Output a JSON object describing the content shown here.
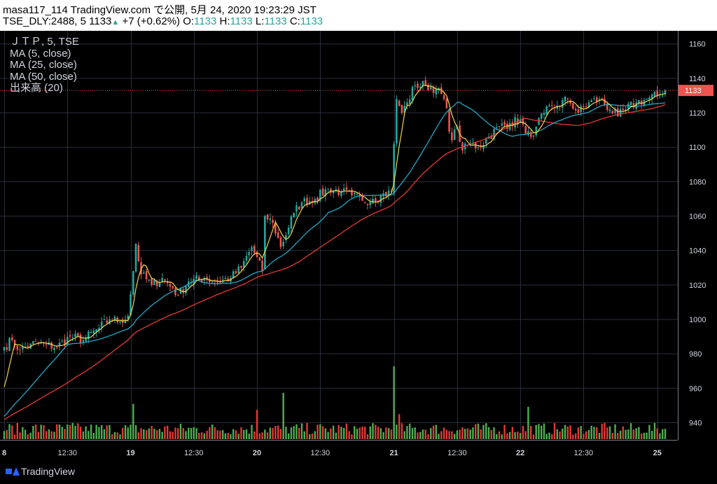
{
  "header": {
    "line1": "masa117_114 TradingView.com で公開, 5月 24, 2020 19:23:29 JST",
    "symbol": "TSE_DLY:2488, 5",
    "last": "1133",
    "change_arrow": "▲",
    "change": "+7 (+0.62%)",
    "o_label": "O:",
    "o": "1133",
    "h_label": "H:",
    "h": "1133",
    "l_label": "L:",
    "l": "1133",
    "c_label": "C:",
    "c": "1133"
  },
  "legend": {
    "symbol": "ＪＴＰ, 5, TSE",
    "ma5": "MA (5, close)",
    "ma25": "MA (25, close)",
    "ma50": "MA (50, close)",
    "volume": "出来高 (20)"
  },
  "footer": {
    "brand": "TradingView"
  },
  "colors": {
    "background": "#000000",
    "grid": "#2a2e39",
    "up": "#26a69a",
    "down": "#ef5350",
    "ma5": "#f5d547",
    "ma25": "#22a7c8",
    "ma50": "#e53935",
    "axis_text": "#d1d4dc",
    "price_line": "#ef5350",
    "volume_up": "#4caf50",
    "volume_down": "#e53935"
  },
  "chart_data": {
    "type": "candlestick",
    "x_ticks": [
      "8",
      "12:30",
      "19",
      "12:30",
      "20",
      "12:30",
      "21",
      "12:30",
      "22",
      "12:30",
      "25"
    ],
    "x_tick_bold": [
      true,
      false,
      true,
      false,
      true,
      false,
      true,
      false,
      true,
      false,
      true
    ],
    "y_ticks": [
      940,
      960,
      980,
      1000,
      1020,
      1040,
      1060,
      1080,
      1100,
      1120,
      1140,
      1160
    ],
    "ylim": [
      930,
      1166
    ],
    "last_price": 1133,
    "last_price_label": "1133",
    "grid": true,
    "close_anchors": [
      [
        0,
        984
      ],
      [
        3,
        988
      ],
      [
        6,
        982
      ],
      [
        10,
        986
      ],
      [
        16,
        985
      ],
      [
        20,
        984
      ],
      [
        25,
        990
      ],
      [
        30,
        988
      ],
      [
        36,
        995
      ],
      [
        40,
        1000
      ],
      [
        44,
        999
      ],
      [
        47,
        1002
      ],
      [
        49,
        1028
      ],
      [
        50,
        1044
      ],
      [
        52,
        1026
      ],
      [
        56,
        1020
      ],
      [
        60,
        1024
      ],
      [
        64,
        1018
      ],
      [
        66,
        1014
      ],
      [
        70,
        1022
      ],
      [
        76,
        1024
      ],
      [
        80,
        1022
      ],
      [
        86,
        1024
      ],
      [
        90,
        1030
      ],
      [
        94,
        1042
      ],
      [
        98,
        1028
      ],
      [
        99,
        1060
      ],
      [
        102,
        1056
      ],
      [
        105,
        1042
      ],
      [
        110,
        1062
      ],
      [
        113,
        1068
      ],
      [
        118,
        1070
      ],
      [
        123,
        1076
      ],
      [
        128,
        1074
      ],
      [
        132,
        1072
      ],
      [
        136,
        1069
      ],
      [
        140,
        1070
      ],
      [
        143,
        1072
      ],
      [
        147,
        1074
      ],
      [
        148,
        1102
      ],
      [
        149,
        1128
      ],
      [
        151,
        1120
      ],
      [
        153,
        1126
      ],
      [
        156,
        1136
      ],
      [
        160,
        1136
      ],
      [
        164,
        1134
      ],
      [
        167,
        1128
      ],
      [
        170,
        1104
      ],
      [
        172,
        1112
      ],
      [
        174,
        1098
      ],
      [
        177,
        1102
      ],
      [
        180,
        1100
      ],
      [
        184,
        1106
      ],
      [
        188,
        1112
      ],
      [
        192,
        1114
      ],
      [
        196,
        1116
      ],
      [
        198,
        1108
      ],
      [
        200,
        1106
      ],
      [
        202,
        1112
      ],
      [
        205,
        1120
      ],
      [
        210,
        1124
      ],
      [
        214,
        1128
      ],
      [
        218,
        1120
      ],
      [
        222,
        1126
      ],
      [
        226,
        1128
      ],
      [
        230,
        1122
      ],
      [
        233,
        1118
      ],
      [
        236,
        1122
      ],
      [
        240,
        1126
      ],
      [
        244,
        1128
      ],
      [
        248,
        1130
      ],
      [
        251,
        1133
      ]
    ],
    "volume_peaks": [
      [
        49,
        0.48
      ],
      [
        96,
        0.4
      ],
      [
        106,
        0.63
      ],
      [
        148,
        0.99
      ],
      [
        199,
        0.44
      ],
      [
        150,
        0.34
      ],
      [
        12,
        0.2
      ],
      [
        26,
        0.22
      ]
    ]
  }
}
